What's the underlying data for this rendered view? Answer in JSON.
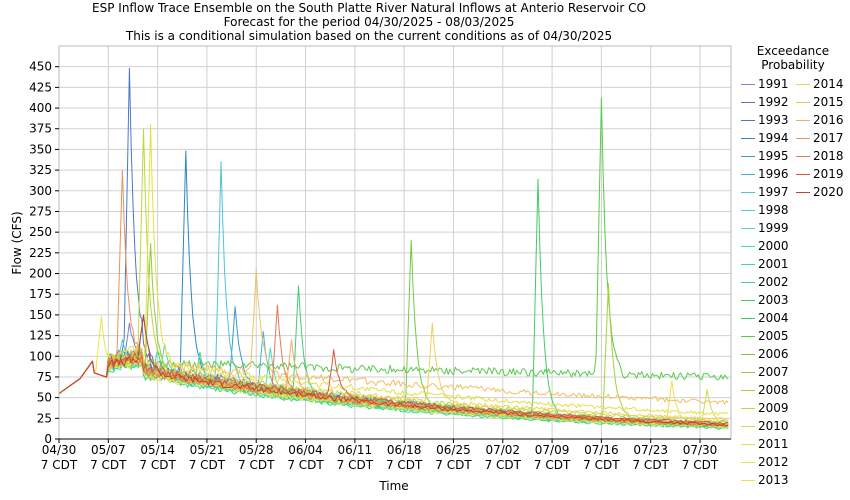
{
  "chart_data": {
    "type": "line",
    "title": [
      "ESP Inflow Trace Ensemble on the South Platte River Natural Inflows at Anterio Reservoir CO",
      "Forecast for the period 04/30/2025 - 08/03/2025",
      "This is a conditional simulation based on the current conditions as of 04/30/2025"
    ],
    "xlabel": "Time",
    "ylabel": "Flow (CFS)",
    "x_range": [
      "2025-04-30",
      "2025-08-03"
    ],
    "ylim": [
      0,
      475
    ],
    "yticks": [
      0,
      25,
      50,
      75,
      100,
      125,
      150,
      175,
      200,
      225,
      250,
      275,
      300,
      325,
      350,
      375,
      400,
      425,
      450
    ],
    "xticks": [
      {
        "date": "2025-04-30",
        "label": [
          "04/30",
          "7 CDT"
        ]
      },
      {
        "date": "2025-05-07",
        "label": [
          "05/07",
          "7 CDT"
        ]
      },
      {
        "date": "2025-05-14",
        "label": [
          "05/14",
          "7 CDT"
        ]
      },
      {
        "date": "2025-05-21",
        "label": [
          "05/21",
          "7 CDT"
        ]
      },
      {
        "date": "2025-05-28",
        "label": [
          "05/28",
          "7 CDT"
        ]
      },
      {
        "date": "2025-06-04",
        "label": [
          "06/04",
          "7 CDT"
        ]
      },
      {
        "date": "2025-06-11",
        "label": [
          "06/11",
          "7 CDT"
        ]
      },
      {
        "date": "2025-06-18",
        "label": [
          "06/18",
          "7 CDT"
        ]
      },
      {
        "date": "2025-06-25",
        "label": [
          "06/25",
          "7 CDT"
        ]
      },
      {
        "date": "2025-07-02",
        "label": [
          "07/02",
          "7 CDT"
        ]
      },
      {
        "date": "2025-07-09",
        "label": [
          "07/09",
          "7 CDT"
        ]
      },
      {
        "date": "2025-07-16",
        "label": [
          "07/16",
          "7 CDT"
        ]
      },
      {
        "date": "2025-07-23",
        "label": [
          "07/23",
          "7 CDT"
        ]
      },
      {
        "date": "2025-07-30",
        "label": [
          "07/30",
          "7 CDT"
        ]
      }
    ],
    "grid": true,
    "legend_title": [
      "Exceedance",
      "Probability"
    ],
    "legend_position": "right",
    "series": [
      {
        "name": "1991",
        "color": "#7a84c8",
        "peak": [
          10,
          140
        ],
        "base": 92,
        "end": 16
      },
      {
        "name": "1992",
        "color": "#6470c0",
        "peak": [
          12,
          150
        ],
        "base": 95,
        "end": 17
      },
      {
        "name": "1993",
        "color": "#4a78c8",
        "peak": [
          10,
          448
        ],
        "base": 100,
        "end": 18
      },
      {
        "name": "1994",
        "color": "#2d86c4",
        "peak": [
          18,
          348
        ],
        "base": 98,
        "end": 17
      },
      {
        "name": "1995",
        "color": "#3c9ad0",
        "peak": [
          25,
          160
        ],
        "base": 96,
        "end": 18
      },
      {
        "name": "1996",
        "color": "#49b0d6",
        "peak": [
          29,
          130
        ],
        "base": 90,
        "end": 16
      },
      {
        "name": "1997",
        "color": "#4fc3d9",
        "peak": [
          23,
          335
        ],
        "base": 92,
        "end": 17
      },
      {
        "name": "1998",
        "color": "#52cdd0",
        "peak": [
          9,
          120
        ],
        "base": 88,
        "end": 15
      },
      {
        "name": "1999",
        "color": "#4fd6c2",
        "peak": [
          30,
          110
        ],
        "base": 86,
        "end": 15
      },
      {
        "name": "2000",
        "color": "#45d8b2",
        "peak": [
          15,
          115
        ],
        "base": 87,
        "end": 14
      },
      {
        "name": "2001",
        "color": "#3fd9a0",
        "peak": [
          20,
          105
        ],
        "base": 85,
        "end": 14
      },
      {
        "name": "2002",
        "color": "#3ad68c",
        "peak": [
          14,
          108
        ],
        "base": 84,
        "end": 13
      },
      {
        "name": "2003",
        "color": "#3dcd78",
        "peak": [
          34,
          185
        ],
        "base": 88,
        "end": 15
      },
      {
        "name": "2004",
        "color": "#46c965",
        "peak": [
          68,
          314
        ],
        "base": 90,
        "end": 16
      },
      {
        "name": "2005",
        "color": "#5cc94f",
        "peak": [
          77,
          412
        ],
        "base": 93,
        "end": 75
      },
      {
        "name": "2006",
        "color": "#72ca43",
        "peak": [
          50,
          240
        ],
        "base": 91,
        "end": 18
      },
      {
        "name": "2007",
        "color": "#8fcd3e",
        "peak": [
          13,
          236
        ],
        "base": 90,
        "end": 17
      },
      {
        "name": "2008",
        "color": "#a6d23d",
        "peak": [
          78,
          188
        ],
        "base": 92,
        "end": 20
      },
      {
        "name": "2009",
        "color": "#bcd83d",
        "peak": [
          12,
          375
        ],
        "base": 95,
        "end": 22
      },
      {
        "name": "2010",
        "color": "#d2dd3f",
        "peak": [
          92,
          60
        ],
        "base": 89,
        "end": 16
      },
      {
        "name": "2011",
        "color": "#e3e142",
        "peak": [
          13,
          380
        ],
        "base": 100,
        "end": 30
      },
      {
        "name": "2012",
        "color": "#ece448",
        "peak": [
          6,
          148
        ],
        "base": 86,
        "end": 14
      },
      {
        "name": "2013",
        "color": "#f0e04e",
        "peak": [
          87,
          70
        ],
        "base": 88,
        "end": 16
      },
      {
        "name": "2014",
        "color": "#efd05a",
        "peak": [
          53,
          140
        ],
        "base": 94,
        "end": 24
      },
      {
        "name": "2015",
        "color": "#f0c060",
        "peak": [
          28,
          205
        ],
        "base": 97,
        "end": 44
      },
      {
        "name": "2016",
        "color": "#efad66",
        "peak": [
          33,
          120
        ],
        "base": 90,
        "end": 18
      },
      {
        "name": "2017",
        "color": "#e9935c",
        "peak": [
          9,
          325
        ],
        "base": 92,
        "end": 17
      },
      {
        "name": "2018",
        "color": "#e27a52",
        "peak": [
          31,
          162
        ],
        "base": 89,
        "end": 16
      },
      {
        "name": "2019",
        "color": "#d65a3d",
        "peak": [
          39,
          108
        ],
        "base": 94,
        "end": 19
      },
      {
        "name": "2020",
        "color": "#c8402a",
        "peak": [
          12,
          150
        ],
        "base": 90,
        "end": 17
      }
    ]
  }
}
